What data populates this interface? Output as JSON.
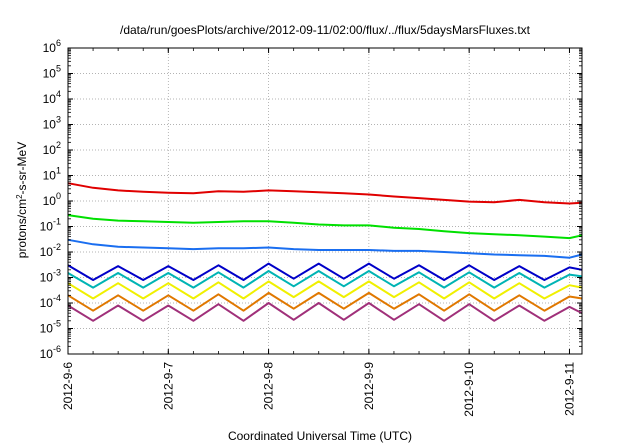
{
  "chart_data": {
    "type": "line",
    "title": "/data/run/goesPlots/archive/2012-09-11/02:00/flux/../flux/5daysMarsFluxes.txt",
    "xlabel": "Coordinated Universal Time (UTC)",
    "ylabel": "protons/cm2-s-sr-MeV",
    "ylabel_parts": {
      "pre": "protons/cm",
      "sup": "2",
      "post": "-s-sr-MeV"
    },
    "y_scale": "log",
    "ylim": [
      1e-06,
      1000000.0
    ],
    "xlim": [
      "2012-09-06 00:00",
      "2012-09-11 03:00"
    ],
    "grid": true,
    "legend": "none",
    "x_ticks": [
      {
        "value": "2012-09-06",
        "label": "2012-9-6"
      },
      {
        "value": "2012-09-07",
        "label": "2012-9-7"
      },
      {
        "value": "2012-09-08",
        "label": "2012-9-8"
      },
      {
        "value": "2012-09-09",
        "label": "2012-9-9"
      },
      {
        "value": "2012-09-10",
        "label": "2012-9-10"
      },
      {
        "value": "2012-09-11",
        "label": "2012-9-11"
      }
    ],
    "y_ticks": [
      {
        "value": 1e-06,
        "base": "10",
        "exp": "-6"
      },
      {
        "value": 1e-05,
        "base": "10",
        "exp": "-5"
      },
      {
        "value": 0.0001,
        "base": "10",
        "exp": "-4"
      },
      {
        "value": 0.001,
        "base": "10",
        "exp": "-3"
      },
      {
        "value": 0.01,
        "base": "10",
        "exp": "-2"
      },
      {
        "value": 0.1,
        "base": "10",
        "exp": "-1"
      },
      {
        "value": 1,
        "base": "10",
        "exp": "0"
      },
      {
        "value": 10,
        "base": "10",
        "exp": "1"
      },
      {
        "value": 100,
        "base": "10",
        "exp": "2"
      },
      {
        "value": 1000,
        "base": "10",
        "exp": "3"
      },
      {
        "value": 10000,
        "base": "10",
        "exp": "4"
      },
      {
        "value": 100000,
        "base": "10",
        "exp": "5"
      },
      {
        "value": 1000000,
        "base": "10",
        "exp": "6"
      }
    ],
    "series": [
      {
        "color": "#e00000",
        "points": [
          [
            "2012-09-06 00:00",
            5.0
          ],
          [
            "2012-09-06 06:00",
            3.3
          ],
          [
            "2012-09-06 12:00",
            2.6
          ],
          [
            "2012-09-06 18:00",
            2.3
          ],
          [
            "2012-09-07 00:00",
            2.1
          ],
          [
            "2012-09-07 06:00",
            2.0
          ],
          [
            "2012-09-07 12:00",
            2.4
          ],
          [
            "2012-09-07 18:00",
            2.3
          ],
          [
            "2012-09-08 00:00",
            2.6
          ],
          [
            "2012-09-08 06:00",
            2.4
          ],
          [
            "2012-09-08 12:00",
            2.2
          ],
          [
            "2012-09-08 18:00",
            2.0
          ],
          [
            "2012-09-09 00:00",
            1.8
          ],
          [
            "2012-09-09 06:00",
            1.5
          ],
          [
            "2012-09-09 12:00",
            1.3
          ],
          [
            "2012-09-09 18:00",
            1.1
          ],
          [
            "2012-09-10 00:00",
            0.95
          ],
          [
            "2012-09-10 06:00",
            0.9
          ],
          [
            "2012-09-10 12:00",
            1.1
          ],
          [
            "2012-09-10 18:00",
            0.9
          ],
          [
            "2012-09-11 00:00",
            0.8
          ],
          [
            "2012-09-11 03:00",
            0.85
          ]
        ]
      },
      {
        "color": "#00e000",
        "points": [
          [
            "2012-09-06 00:00",
            0.28
          ],
          [
            "2012-09-06 06:00",
            0.2
          ],
          [
            "2012-09-06 12:00",
            0.17
          ],
          [
            "2012-09-06 18:00",
            0.16
          ],
          [
            "2012-09-07 00:00",
            0.15
          ],
          [
            "2012-09-07 06:00",
            0.14
          ],
          [
            "2012-09-07 12:00",
            0.15
          ],
          [
            "2012-09-07 18:00",
            0.16
          ],
          [
            "2012-09-08 00:00",
            0.16
          ],
          [
            "2012-09-08 06:00",
            0.14
          ],
          [
            "2012-09-08 12:00",
            0.12
          ],
          [
            "2012-09-08 18:00",
            0.11
          ],
          [
            "2012-09-09 00:00",
            0.11
          ],
          [
            "2012-09-09 06:00",
            0.09
          ],
          [
            "2012-09-09 12:00",
            0.08
          ],
          [
            "2012-09-09 18:00",
            0.065
          ],
          [
            "2012-09-10 00:00",
            0.055
          ],
          [
            "2012-09-10 06:00",
            0.05
          ],
          [
            "2012-09-10 12:00",
            0.045
          ],
          [
            "2012-09-10 18:00",
            0.04
          ],
          [
            "2012-09-11 00:00",
            0.035
          ],
          [
            "2012-09-11 03:00",
            0.045
          ]
        ]
      },
      {
        "color": "#1a6ef0",
        "points": [
          [
            "2012-09-06 00:00",
            0.03
          ],
          [
            "2012-09-06 06:00",
            0.02
          ],
          [
            "2012-09-06 12:00",
            0.016
          ],
          [
            "2012-09-06 18:00",
            0.015
          ],
          [
            "2012-09-07 00:00",
            0.014
          ],
          [
            "2012-09-07 06:00",
            0.013
          ],
          [
            "2012-09-07 12:00",
            0.014
          ],
          [
            "2012-09-07 18:00",
            0.014
          ],
          [
            "2012-09-08 00:00",
            0.015
          ],
          [
            "2012-09-08 06:00",
            0.013
          ],
          [
            "2012-09-08 12:00",
            0.012
          ],
          [
            "2012-09-08 18:00",
            0.012
          ],
          [
            "2012-09-09 00:00",
            0.012
          ],
          [
            "2012-09-09 06:00",
            0.011
          ],
          [
            "2012-09-09 12:00",
            0.011
          ],
          [
            "2012-09-09 18:00",
            0.01
          ],
          [
            "2012-09-10 00:00",
            0.009
          ],
          [
            "2012-09-10 06:00",
            0.008
          ],
          [
            "2012-09-10 12:00",
            0.0075
          ],
          [
            "2012-09-10 18:00",
            0.007
          ],
          [
            "2012-09-11 00:00",
            0.006
          ],
          [
            "2012-09-11 03:00",
            0.008
          ]
        ]
      },
      {
        "color": "#0000c8",
        "points": [
          [
            "2012-09-06 00:00",
            0.003
          ],
          [
            "2012-09-06 06:00",
            0.0008
          ],
          [
            "2012-09-06 12:00",
            0.0028
          ],
          [
            "2012-09-06 18:00",
            0.0008
          ],
          [
            "2012-09-07 00:00",
            0.0028
          ],
          [
            "2012-09-07 06:00",
            0.0008
          ],
          [
            "2012-09-07 12:00",
            0.003
          ],
          [
            "2012-09-07 18:00",
            0.0008
          ],
          [
            "2012-09-08 00:00",
            0.0035
          ],
          [
            "2012-09-08 06:00",
            0.0009
          ],
          [
            "2012-09-08 12:00",
            0.0035
          ],
          [
            "2012-09-08 18:00",
            0.0009
          ],
          [
            "2012-09-09 00:00",
            0.0035
          ],
          [
            "2012-09-09 06:00",
            0.0009
          ],
          [
            "2012-09-09 12:00",
            0.003
          ],
          [
            "2012-09-09 18:00",
            0.0008
          ],
          [
            "2012-09-10 00:00",
            0.003
          ],
          [
            "2012-09-10 06:00",
            0.0008
          ],
          [
            "2012-09-10 12:00",
            0.0028
          ],
          [
            "2012-09-10 18:00",
            0.0008
          ],
          [
            "2012-09-11 00:00",
            0.0025
          ],
          [
            "2012-09-11 03:00",
            0.002
          ]
        ]
      },
      {
        "color": "#00b4b4",
        "points": [
          [
            "2012-09-06 00:00",
            0.0015
          ],
          [
            "2012-09-06 06:00",
            0.0004
          ],
          [
            "2012-09-06 12:00",
            0.0015
          ],
          [
            "2012-09-06 18:00",
            0.0004
          ],
          [
            "2012-09-07 00:00",
            0.0015
          ],
          [
            "2012-09-07 06:00",
            0.0004
          ],
          [
            "2012-09-07 12:00",
            0.0016
          ],
          [
            "2012-09-07 18:00",
            0.0004
          ],
          [
            "2012-09-08 00:00",
            0.0018
          ],
          [
            "2012-09-08 06:00",
            0.00045
          ],
          [
            "2012-09-08 12:00",
            0.0018
          ],
          [
            "2012-09-08 18:00",
            0.00045
          ],
          [
            "2012-09-09 00:00",
            0.0018
          ],
          [
            "2012-09-09 06:00",
            0.00045
          ],
          [
            "2012-09-09 12:00",
            0.0016
          ],
          [
            "2012-09-09 18:00",
            0.0004
          ],
          [
            "2012-09-10 00:00",
            0.0016
          ],
          [
            "2012-09-10 06:00",
            0.0004
          ],
          [
            "2012-09-10 12:00",
            0.0015
          ],
          [
            "2012-09-10 18:00",
            0.0004
          ],
          [
            "2012-09-11 00:00",
            0.0013
          ],
          [
            "2012-09-11 03:00",
            0.0011
          ]
        ]
      },
      {
        "color": "#f0f000",
        "points": [
          [
            "2012-09-06 00:00",
            0.0006
          ],
          [
            "2012-09-06 06:00",
            0.00015
          ],
          [
            "2012-09-06 12:00",
            0.0006
          ],
          [
            "2012-09-06 18:00",
            0.00015
          ],
          [
            "2012-09-07 00:00",
            0.0006
          ],
          [
            "2012-09-07 06:00",
            0.00015
          ],
          [
            "2012-09-07 12:00",
            0.00065
          ],
          [
            "2012-09-07 18:00",
            0.00015
          ],
          [
            "2012-09-08 00:00",
            0.0007
          ],
          [
            "2012-09-08 06:00",
            0.00017
          ],
          [
            "2012-09-08 12:00",
            0.0007
          ],
          [
            "2012-09-08 18:00",
            0.00017
          ],
          [
            "2012-09-09 00:00",
            0.0007
          ],
          [
            "2012-09-09 06:00",
            0.00017
          ],
          [
            "2012-09-09 12:00",
            0.00065
          ],
          [
            "2012-09-09 18:00",
            0.00015
          ],
          [
            "2012-09-10 00:00",
            0.00065
          ],
          [
            "2012-09-10 06:00",
            0.00015
          ],
          [
            "2012-09-10 12:00",
            0.0006
          ],
          [
            "2012-09-10 18:00",
            0.00015
          ],
          [
            "2012-09-11 00:00",
            0.0005
          ],
          [
            "2012-09-11 03:00",
            0.0004
          ]
        ]
      },
      {
        "color": "#e07800",
        "points": [
          [
            "2012-09-06 00:00",
            0.0002
          ],
          [
            "2012-09-06 06:00",
            5e-05
          ],
          [
            "2012-09-06 12:00",
            0.0002
          ],
          [
            "2012-09-06 18:00",
            5e-05
          ],
          [
            "2012-09-07 00:00",
            0.0002
          ],
          [
            "2012-09-07 06:00",
            5e-05
          ],
          [
            "2012-09-07 12:00",
            0.00022
          ],
          [
            "2012-09-07 18:00",
            5e-05
          ],
          [
            "2012-09-08 00:00",
            0.00025
          ],
          [
            "2012-09-08 06:00",
            6e-05
          ],
          [
            "2012-09-08 12:00",
            0.00025
          ],
          [
            "2012-09-08 18:00",
            6e-05
          ],
          [
            "2012-09-09 00:00",
            0.00025
          ],
          [
            "2012-09-09 06:00",
            6e-05
          ],
          [
            "2012-09-09 12:00",
            0.00022
          ],
          [
            "2012-09-09 18:00",
            5e-05
          ],
          [
            "2012-09-10 00:00",
            0.00022
          ],
          [
            "2012-09-10 06:00",
            5e-05
          ],
          [
            "2012-09-10 12:00",
            0.0002
          ],
          [
            "2012-09-10 18:00",
            5e-05
          ],
          [
            "2012-09-11 00:00",
            0.00018
          ],
          [
            "2012-09-11 03:00",
            0.00015
          ]
        ]
      },
      {
        "color": "#a0307a",
        "points": [
          [
            "2012-09-06 00:00",
            8e-05
          ],
          [
            "2012-09-06 06:00",
            2e-05
          ],
          [
            "2012-09-06 12:00",
            8e-05
          ],
          [
            "2012-09-06 18:00",
            2e-05
          ],
          [
            "2012-09-07 00:00",
            8e-05
          ],
          [
            "2012-09-07 06:00",
            2e-05
          ],
          [
            "2012-09-07 12:00",
            9e-05
          ],
          [
            "2012-09-07 18:00",
            2e-05
          ],
          [
            "2012-09-08 00:00",
            0.0001
          ],
          [
            "2012-09-08 06:00",
            2.2e-05
          ],
          [
            "2012-09-08 12:00",
            0.0001
          ],
          [
            "2012-09-08 18:00",
            2.2e-05
          ],
          [
            "2012-09-09 00:00",
            0.0001
          ],
          [
            "2012-09-09 06:00",
            2.2e-05
          ],
          [
            "2012-09-09 12:00",
            9e-05
          ],
          [
            "2012-09-09 18:00",
            2e-05
          ],
          [
            "2012-09-10 00:00",
            9e-05
          ],
          [
            "2012-09-10 06:00",
            2e-05
          ],
          [
            "2012-09-10 12:00",
            8e-05
          ],
          [
            "2012-09-10 18:00",
            2e-05
          ],
          [
            "2012-09-11 00:00",
            7e-05
          ],
          [
            "2012-09-11 03:00",
            4e-05
          ]
        ]
      }
    ]
  }
}
